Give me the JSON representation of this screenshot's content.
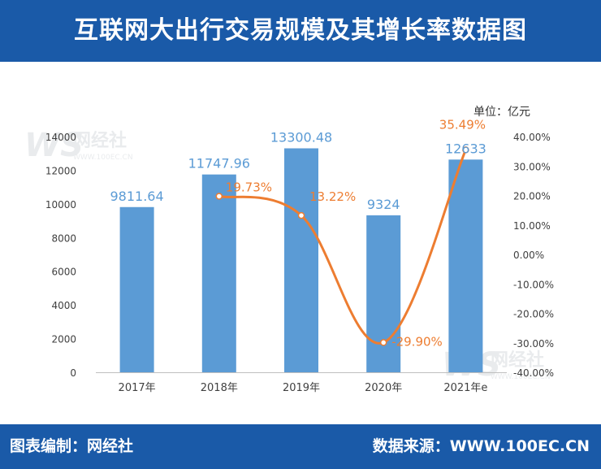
{
  "header": {
    "title": "互联网大出行交易规模及其增长率数据图"
  },
  "footer": {
    "left": "图表编制：网经社",
    "right": "数据来源：WWW.100EC.CN"
  },
  "watermark": {
    "brand": "网经社",
    "url": "WWW.100EC.CN"
  },
  "colors": {
    "bar": "#5b9bd5",
    "line": "#ed7d31",
    "bar_label": "#5b9bd5",
    "line_label": "#ed7d31",
    "header_bg": "#1a5aa8"
  },
  "chart_data": {
    "type": "bar",
    "unit": "单位：亿元",
    "categories": [
      "2017年",
      "2018年",
      "2019年",
      "2020年",
      "2021年e"
    ],
    "bar_values": [
      9811.64,
      11747.96,
      13300.48,
      9324,
      12633
    ],
    "bar_labels": [
      "9811.64",
      "11747.96",
      "13300.48",
      "9324",
      "12633"
    ],
    "line_values": [
      null,
      19.73,
      13.22,
      -29.9,
      35.49
    ],
    "line_labels": [
      "",
      "19.73%",
      "13.22%",
      "-29.90%",
      "35.49%"
    ],
    "y_left": {
      "min": 0,
      "max": 14000,
      "ticks": [
        "0",
        "2000",
        "4000",
        "6000",
        "8000",
        "10000",
        "12000",
        "14000"
      ]
    },
    "y_right": {
      "min": -40,
      "max": 40,
      "ticks": [
        "-40.00%",
        "-30.00%",
        "-20.00%",
        "-10.00%",
        "0.00%",
        "10.00%",
        "20.00%",
        "30.00%",
        "40.00%"
      ]
    },
    "grid": false,
    "legend": "none"
  }
}
